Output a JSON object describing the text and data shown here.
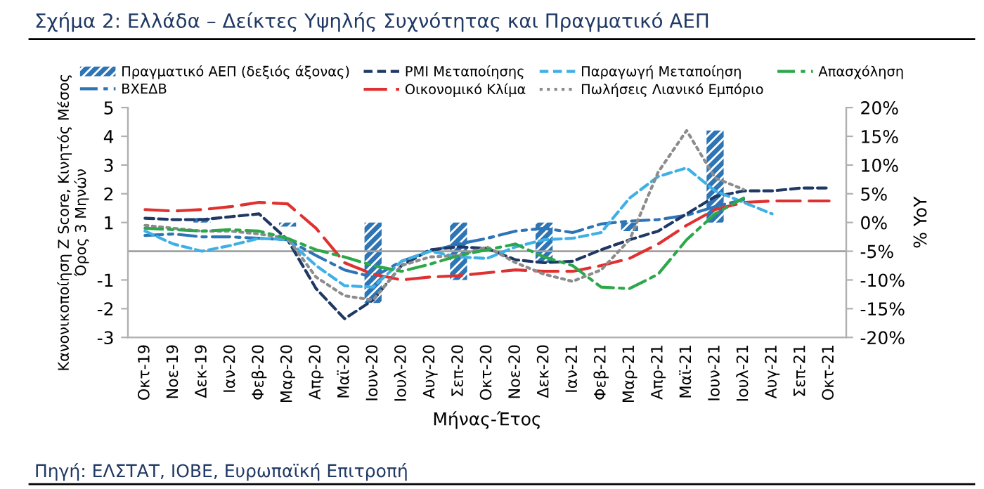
{
  "chart_data": {
    "type": "line",
    "title": "Σχήμα 2: Ελλάδα – Δείκτες Υψηλής Συχνότητας και Πραγματικό ΑΕΠ",
    "xlabel": "Μήνας-Έτος",
    "ylabel": "Κανονικοποίηση Z Score, Κινητός Μέσος\nΌρος 3 Μηνών",
    "y2label": "% YoY",
    "annotations": [
      "Πηγή: ΕΛΣΤΑΤ, ΙΟΒΕ, Ευρωπαϊκή Επιτροπή"
    ],
    "categories": [
      "Οκτ-19",
      "Νοε-19",
      "Δεκ-19",
      "Ιαν-20",
      "Φεβ-20",
      "Μαρ-20",
      "Απρ-20",
      "Μαϊ-20",
      "Ιουν-20",
      "Ιουλ-20",
      "Αυγ-20",
      "Σεπ-20",
      "Οκτ-20",
      "Νοε-20",
      "Δεκ-20",
      "Ιαν-21",
      "Φεβ-21",
      "Μαρ-21",
      "Απρ-21",
      "Μαϊ-21",
      "Ιουν-21",
      "Ιουλ-21",
      "Αυγ-21",
      "Σεπ-21",
      "Οκτ-21"
    ],
    "series": [
      {
        "name": "Πραγματικό ΑΕΠ (δεξιός άξονας)",
        "type": "bar",
        "axis": "y2",
        "color": "#2e75b6",
        "values": [
          null,
          null,
          0.8,
          null,
          null,
          -0.7,
          null,
          null,
          -14,
          null,
          null,
          -10,
          null,
          null,
          -7,
          null,
          null,
          -1.5,
          null,
          null,
          16,
          null,
          null,
          null,
          null
        ]
      },
      {
        "name": "ΒΧΕΔΒ",
        "line_style": "dashdot",
        "color": "#2e75b6",
        "values": [
          0.55,
          0.6,
          0.5,
          0.5,
          0.45,
          0.4,
          -0.15,
          -0.65,
          -0.9,
          -0.35,
          0,
          0.25,
          0.45,
          0.7,
          0.8,
          0.65,
          0.95,
          1.05,
          1.1,
          1.25,
          1.55,
          1.8,
          null,
          null,
          null
        ]
      },
      {
        "name": "PMI Μεταποίησης",
        "line_style": "dashed",
        "color": "#1f3864",
        "values": [
          1.15,
          1.1,
          1.1,
          1.2,
          1.3,
          0.4,
          -1.3,
          -2.35,
          -1.7,
          -0.5,
          0.05,
          0.15,
          0.1,
          -0.3,
          -0.4,
          -0.35,
          0.05,
          0.4,
          0.7,
          1.3,
          1.9,
          2.1,
          2.1,
          2.2,
          2.2
        ]
      },
      {
        "name": "Οικονομικό Κλίμα",
        "line_style": "longdash",
        "color": "#e03030",
        "values": [
          1.45,
          1.4,
          1.45,
          1.55,
          1.7,
          1.65,
          0.8,
          -0.4,
          -0.8,
          -1.0,
          -0.9,
          -0.85,
          -0.75,
          -0.65,
          -0.7,
          -0.7,
          -0.5,
          -0.25,
          0.25,
          0.9,
          1.45,
          1.7,
          1.75,
          1.75,
          1.75
        ]
      },
      {
        "name": "Παραγωγή Μεταποίηση",
        "line_style": "dashed",
        "color": "#3fb0e6",
        "values": [
          0.7,
          0.25,
          0,
          0.2,
          0.45,
          0.4,
          -0.5,
          -1.2,
          -1.25,
          -0.35,
          0,
          -0.2,
          -0.25,
          0.15,
          0.4,
          0.45,
          0.65,
          1.85,
          2.6,
          2.9,
          2.1,
          1.7,
          1.3,
          null,
          null
        ]
      },
      {
        "name": "Πωλήσεις Λιανικό Εμπόριο",
        "line_style": "dotted",
        "color": "#8c8c8c",
        "values": [
          0.9,
          0.8,
          0.7,
          0.7,
          0.6,
          0.45,
          -0.9,
          -1.55,
          -1.7,
          -0.5,
          -0.2,
          -0.15,
          0.15,
          -0.4,
          -0.8,
          -1.05,
          -0.65,
          0.4,
          2.75,
          4.2,
          2.55,
          2.15,
          null,
          null,
          null
        ]
      },
      {
        "name": "Απασχόληση",
        "line_style": "dashdot",
        "color": "#2ca84a",
        "values": [
          0.8,
          0.75,
          0.7,
          0.75,
          0.7,
          0.45,
          0.05,
          -0.2,
          -0.5,
          -0.7,
          -0.45,
          -0.15,
          0.05,
          0.25,
          -0.2,
          -0.5,
          -1.25,
          -1.3,
          -0.8,
          0.4,
          1.3,
          1.85,
          null,
          null,
          null
        ]
      }
    ],
    "ylim": [
      -3,
      5
    ],
    "yticks": [
      -3,
      -2,
      -1,
      1,
      2,
      3,
      4,
      5
    ],
    "y2lim": [
      -20,
      20
    ],
    "y2ticks": [
      {
        "value": -20,
        "label": "-20%"
      },
      {
        "value": -15,
        "label": "-15%"
      },
      {
        "value": -10,
        "label": "-10%"
      },
      {
        "value": -5,
        "label": "-5%"
      },
      {
        "value": 0,
        "label": "0%"
      },
      {
        "value": 5,
        "label": "5%"
      },
      {
        "value": 10,
        "label": "10%"
      },
      {
        "value": 15,
        "label": "15%"
      },
      {
        "value": 20,
        "label": "20%"
      }
    ],
    "ref_lines": [
      {
        "axis": "y",
        "value": 0,
        "color": "#a0a0a0"
      }
    ],
    "legend": "top",
    "grid": false
  }
}
